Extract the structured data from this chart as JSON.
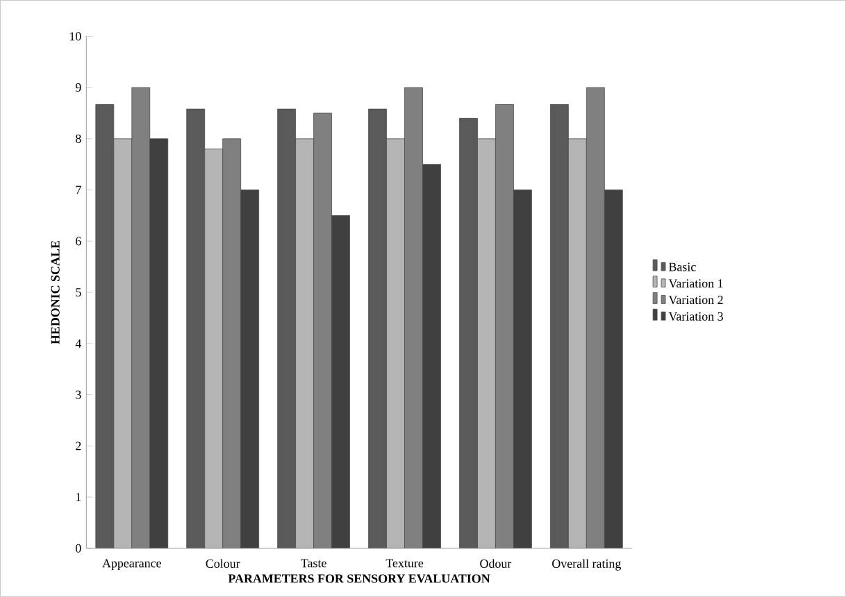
{
  "chart_data": {
    "type": "bar",
    "xlabel": "PARAMETERS FOR SENSORY EVALUATION",
    "ylabel": "HEDONIC SCALE",
    "categories": [
      "Appearance",
      "Colour",
      "Taste",
      "Texture",
      "Odour",
      "Overall rating"
    ],
    "series": [
      {
        "name": "Basic",
        "color": "#5a5a5a",
        "values": [
          8.67,
          8.58,
          8.58,
          8.58,
          8.4,
          8.67
        ]
      },
      {
        "name": "Variation 1",
        "color": "#b4b4b4",
        "values": [
          8,
          7.8,
          8,
          8,
          8,
          8
        ]
      },
      {
        "name": "Variation 2",
        "color": "#808080",
        "values": [
          9,
          8,
          8.5,
          9,
          8.67,
          9
        ]
      },
      {
        "name": "Variation 3",
        "color": "#404040",
        "values": [
          8,
          7,
          6.5,
          7.5,
          7,
          7
        ]
      }
    ],
    "ylim": [
      0,
      10
    ],
    "yticks": [
      0,
      1,
      2,
      3,
      4,
      5,
      6,
      7,
      8,
      9,
      10
    ],
    "grid": false,
    "legend": "right"
  }
}
